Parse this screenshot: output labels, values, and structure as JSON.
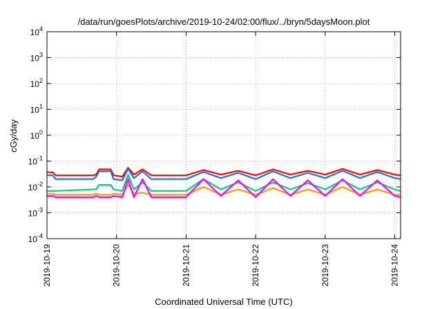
{
  "chart_data": {
    "type": "line",
    "title": "/data/run/goesPlots/archive/2019-10-24/02:00/flux/../bryn/5daysMoon.plot",
    "xlabel": "Coordinated Universal Time (UTC)",
    "ylabel": "cGy/day",
    "y_scale": "log",
    "ylim": [
      0.0001,
      10000
    ],
    "xlim": [
      "2019-10-19T00:00",
      "2019-10-24T02:00"
    ],
    "grid": true,
    "legend": "none",
    "y_ticks": [
      {
        "base": "10",
        "exp": "-4"
      },
      {
        "base": "10",
        "exp": "-3"
      },
      {
        "base": "10",
        "exp": "-2"
      },
      {
        "base": "10",
        "exp": "-1"
      },
      {
        "base": "10",
        "exp": "0"
      },
      {
        "base": "10",
        "exp": "1"
      },
      {
        "base": "10",
        "exp": "2"
      },
      {
        "base": "10",
        "exp": "3"
      },
      {
        "base": "10",
        "exp": "4"
      }
    ],
    "x_ticks": [
      "2019-10-19",
      "2019-10-20",
      "2019-10-21",
      "2019-10-22",
      "2019-10-23",
      "2019-10-24"
    ],
    "series": [
      {
        "color": "#ff0000",
        "x": [
          "2019-10-19T00:00",
          "2019-10-19T02:00",
          "2019-10-19T03:00",
          "2019-10-19T16:00",
          "2019-10-19T17:00",
          "2019-10-19T18:00",
          "2019-10-19T22:00",
          "2019-10-19T23:00",
          "2019-10-20T02:00",
          "2019-10-20T04:00",
          "2019-10-20T06:00",
          "2019-10-20T09:00",
          "2019-10-20T12:00",
          "2019-10-21T00:00",
          "2019-10-21T06:00",
          "2019-10-21T12:00",
          "2019-10-21T18:00",
          "2019-10-22T00:00",
          "2019-10-22T06:00",
          "2019-10-22T12:00",
          "2019-10-22T18:00",
          "2019-10-23T00:00",
          "2019-10-23T06:00",
          "2019-10-23T12:00",
          "2019-10-23T18:00",
          "2019-10-24T00:00",
          "2019-10-24T02:00"
        ],
        "y": [
          0.037,
          0.037,
          0.028,
          0.028,
          0.03,
          0.048,
          0.048,
          0.028,
          0.025,
          0.055,
          0.03,
          0.048,
          0.028,
          0.028,
          0.045,
          0.03,
          0.042,
          0.028,
          0.048,
          0.03,
          0.042,
          0.03,
          0.05,
          0.03,
          0.045,
          0.03,
          0.028
        ]
      },
      {
        "color": "#1f6fe0",
        "x": [
          "2019-10-19T00:00",
          "2019-10-19T02:00",
          "2019-10-19T03:00",
          "2019-10-19T16:00",
          "2019-10-19T17:00",
          "2019-10-19T18:00",
          "2019-10-19T22:00",
          "2019-10-19T23:00",
          "2019-10-20T02:00",
          "2019-10-20T04:00",
          "2019-10-20T06:00",
          "2019-10-20T09:00",
          "2019-10-20T12:00",
          "2019-10-21T00:00",
          "2019-10-21T06:00",
          "2019-10-21T12:00",
          "2019-10-21T18:00",
          "2019-10-22T00:00",
          "2019-10-22T06:00",
          "2019-10-22T12:00",
          "2019-10-22T18:00",
          "2019-10-23T00:00",
          "2019-10-23T06:00",
          "2019-10-23T12:00",
          "2019-10-23T18:00",
          "2019-10-24T00:00",
          "2019-10-24T02:00"
        ],
        "y": [
          0.028,
          0.028,
          0.02,
          0.02,
          0.025,
          0.04,
          0.04,
          0.02,
          0.018,
          0.05,
          0.022,
          0.04,
          0.02,
          0.02,
          0.038,
          0.022,
          0.035,
          0.02,
          0.04,
          0.022,
          0.035,
          0.022,
          0.042,
          0.022,
          0.038,
          0.022,
          0.02
        ]
      },
      {
        "color": "#00cc88",
        "x": [
          "2019-10-19T00:00",
          "2019-10-19T02:00",
          "2019-10-19T03:00",
          "2019-10-19T16:00",
          "2019-10-19T17:00",
          "2019-10-19T18:00",
          "2019-10-19T22:00",
          "2019-10-19T23:00",
          "2019-10-20T02:00",
          "2019-10-20T04:00",
          "2019-10-20T06:00",
          "2019-10-20T09:00",
          "2019-10-20T12:00",
          "2019-10-21T00:00",
          "2019-10-21T06:00",
          "2019-10-21T12:00",
          "2019-10-21T18:00",
          "2019-10-22T00:00",
          "2019-10-22T06:00",
          "2019-10-22T12:00",
          "2019-10-22T18:00",
          "2019-10-23T00:00",
          "2019-10-23T06:00",
          "2019-10-23T12:00",
          "2019-10-23T18:00",
          "2019-10-24T00:00",
          "2019-10-24T02:00"
        ],
        "y": [
          0.007,
          0.007,
          0.007,
          0.008,
          0.008,
          0.012,
          0.012,
          0.008,
          0.007,
          0.03,
          0.008,
          0.015,
          0.007,
          0.007,
          0.02,
          0.008,
          0.015,
          0.007,
          0.015,
          0.008,
          0.014,
          0.008,
          0.018,
          0.008,
          0.015,
          0.008,
          0.007
        ]
      },
      {
        "color": "#ff9900",
        "x": [
          "2019-10-19T00:00",
          "2019-10-19T02:00",
          "2019-10-19T03:00",
          "2019-10-19T16:00",
          "2019-10-19T17:00",
          "2019-10-19T18:00",
          "2019-10-19T22:00",
          "2019-10-19T23:00",
          "2019-10-20T02:00",
          "2019-10-20T04:00",
          "2019-10-20T06:00",
          "2019-10-20T09:00",
          "2019-10-20T12:00",
          "2019-10-21T00:00",
          "2019-10-21T06:00",
          "2019-10-21T12:00",
          "2019-10-21T18:00",
          "2019-10-22T00:00",
          "2019-10-22T06:00",
          "2019-10-22T12:00",
          "2019-10-22T18:00",
          "2019-10-23T00:00",
          "2019-10-23T06:00",
          "2019-10-23T12:00",
          "2019-10-23T18:00",
          "2019-10-24T00:00",
          "2019-10-24T02:00"
        ],
        "y": [
          0.0055,
          0.0055,
          0.005,
          0.005,
          0.0055,
          0.005,
          0.005,
          0.0055,
          0.005,
          0.012,
          0.0055,
          0.006,
          0.005,
          0.005,
          0.01,
          0.005,
          0.008,
          0.005,
          0.009,
          0.005,
          0.008,
          0.005,
          0.01,
          0.005,
          0.008,
          0.005,
          0.005
        ]
      },
      {
        "color": "#ff00ff",
        "x": [
          "2019-10-19T00:00",
          "2019-10-19T02:00",
          "2019-10-19T03:00",
          "2019-10-19T16:00",
          "2019-10-19T17:00",
          "2019-10-19T18:00",
          "2019-10-19T22:00",
          "2019-10-19T23:00",
          "2019-10-20T02:00",
          "2019-10-20T04:00",
          "2019-10-20T06:00",
          "2019-10-20T09:00",
          "2019-10-20T12:00",
          "2019-10-21T00:00",
          "2019-10-21T06:00",
          "2019-10-21T12:00",
          "2019-10-21T18:00",
          "2019-10-22T00:00",
          "2019-10-22T06:00",
          "2019-10-22T12:00",
          "2019-10-22T18:00",
          "2019-10-23T00:00",
          "2019-10-23T06:00",
          "2019-10-23T12:00",
          "2019-10-23T18:00",
          "2019-10-24T00:00",
          "2019-10-24T02:00"
        ],
        "y": [
          0.0045,
          0.0045,
          0.004,
          0.004,
          0.0045,
          0.004,
          0.004,
          0.0045,
          0.004,
          0.02,
          0.004,
          0.02,
          0.004,
          0.004,
          0.02,
          0.0045,
          0.018,
          0.004,
          0.02,
          0.0045,
          0.018,
          0.0045,
          0.02,
          0.0045,
          0.018,
          0.0045,
          0.004
        ]
      }
    ]
  }
}
